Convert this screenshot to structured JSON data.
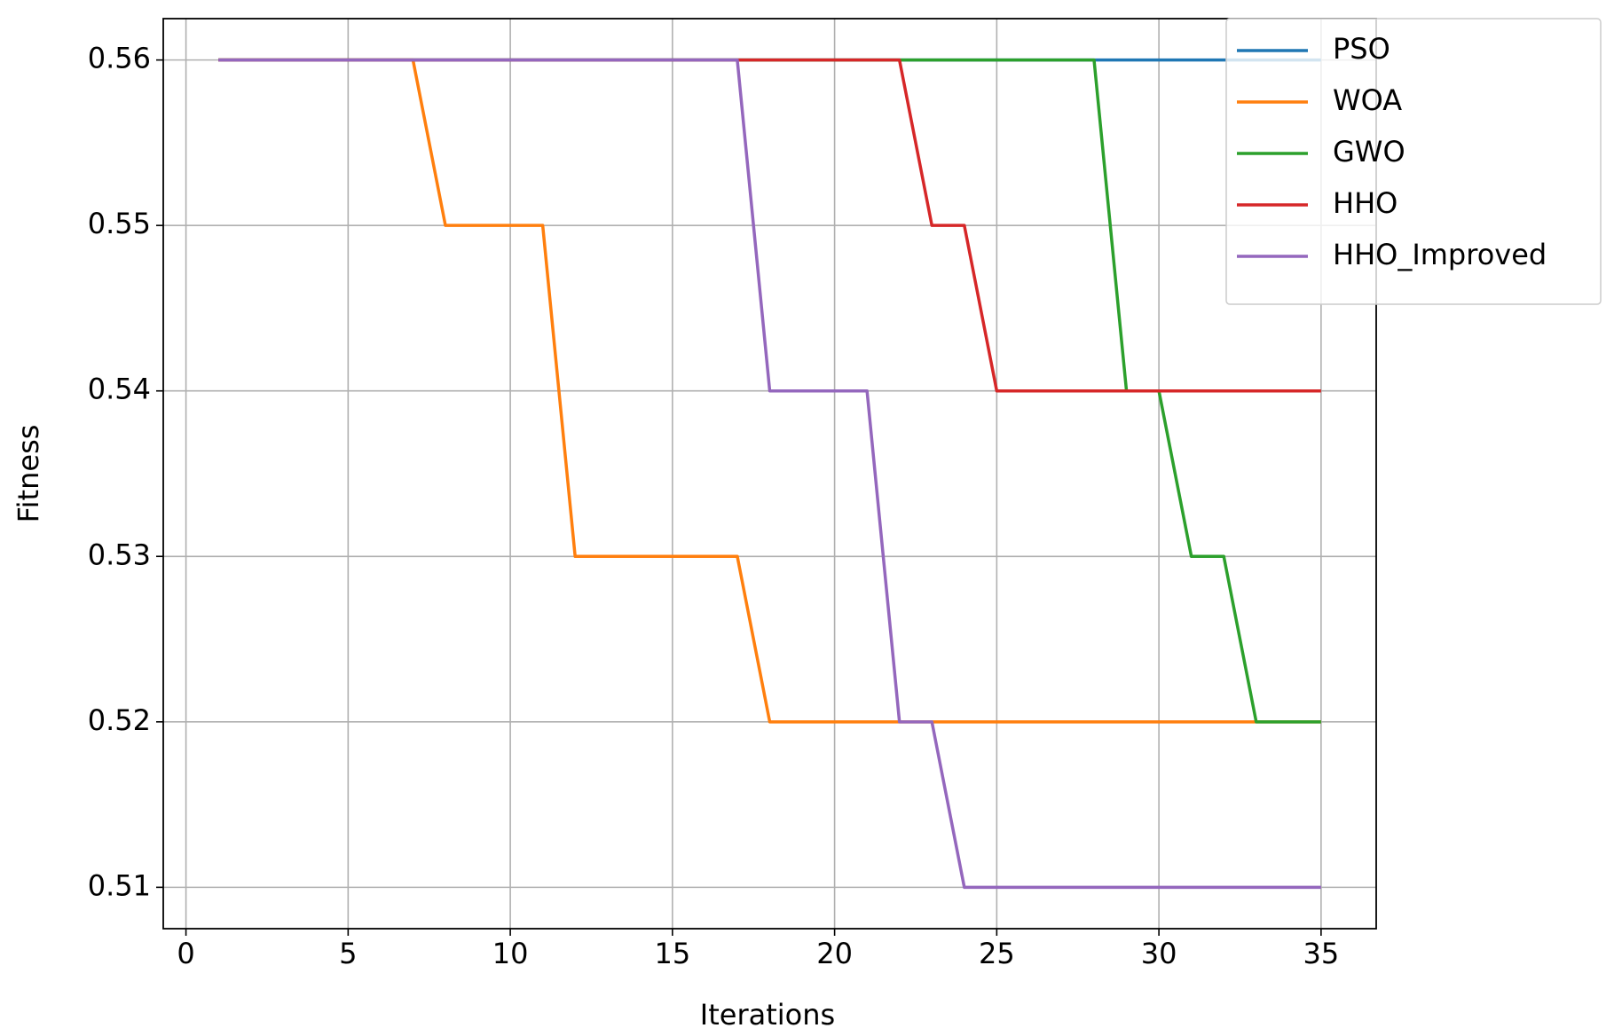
{
  "chart_data": {
    "type": "line",
    "x_label": "Iterations",
    "y_label": "Fitness",
    "x": [
      1,
      2,
      3,
      4,
      5,
      6,
      7,
      8,
      9,
      10,
      11,
      12,
      13,
      14,
      15,
      16,
      17,
      18,
      19,
      20,
      21,
      22,
      23,
      24,
      25,
      26,
      27,
      28,
      29,
      30,
      31,
      32,
      33,
      34,
      35
    ],
    "series": [
      {
        "name": "PSO",
        "color": "#1f77b4",
        "values": [
          0.56,
          0.56,
          0.56,
          0.56,
          0.56,
          0.56,
          0.56,
          0.56,
          0.56,
          0.56,
          0.56,
          0.56,
          0.56,
          0.56,
          0.56,
          0.56,
          0.56,
          0.56,
          0.56,
          0.56,
          0.56,
          0.56,
          0.56,
          0.56,
          0.56,
          0.56,
          0.56,
          0.56,
          0.56,
          0.56,
          0.56,
          0.56,
          0.56,
          0.56,
          0.56
        ]
      },
      {
        "name": "WOA",
        "color": "#ff7f0e",
        "values": [
          0.56,
          0.56,
          0.56,
          0.56,
          0.56,
          0.56,
          0.56,
          0.55,
          0.55,
          0.55,
          0.55,
          0.53,
          0.53,
          0.53,
          0.53,
          0.53,
          0.53,
          0.52,
          0.52,
          0.52,
          0.52,
          0.52,
          0.52,
          0.52,
          0.52,
          0.52,
          0.52,
          0.52,
          0.52,
          0.52,
          0.52,
          0.52,
          0.52,
          0.52,
          0.52
        ]
      },
      {
        "name": "GWO",
        "color": "#2ca02c",
        "values": [
          0.56,
          0.56,
          0.56,
          0.56,
          0.56,
          0.56,
          0.56,
          0.56,
          0.56,
          0.56,
          0.56,
          0.56,
          0.56,
          0.56,
          0.56,
          0.56,
          0.56,
          0.56,
          0.56,
          0.56,
          0.56,
          0.56,
          0.56,
          0.56,
          0.56,
          0.56,
          0.56,
          0.56,
          0.54,
          0.54,
          0.53,
          0.53,
          0.52,
          0.52,
          0.52
        ]
      },
      {
        "name": "HHO",
        "color": "#d62728",
        "values": [
          0.56,
          0.56,
          0.56,
          0.56,
          0.56,
          0.56,
          0.56,
          0.56,
          0.56,
          0.56,
          0.56,
          0.56,
          0.56,
          0.56,
          0.56,
          0.56,
          0.56,
          0.56,
          0.56,
          0.56,
          0.56,
          0.56,
          0.55,
          0.55,
          0.54,
          0.54,
          0.54,
          0.54,
          0.54,
          0.54,
          0.54,
          0.54,
          0.54,
          0.54,
          0.54
        ]
      },
      {
        "name": "HHO_Improved",
        "color": "#9467bd",
        "values": [
          0.56,
          0.56,
          0.56,
          0.56,
          0.56,
          0.56,
          0.56,
          0.56,
          0.56,
          0.56,
          0.56,
          0.56,
          0.56,
          0.56,
          0.56,
          0.56,
          0.56,
          0.54,
          0.54,
          0.54,
          0.54,
          0.52,
          0.52,
          0.51,
          0.51,
          0.51,
          0.51,
          0.51,
          0.51,
          0.51,
          0.51,
          0.51,
          0.51,
          0.51,
          0.51
        ]
      }
    ],
    "xlim": [
      -0.7,
      36.7
    ],
    "xticks": [
      0,
      5,
      10,
      15,
      20,
      25,
      30,
      35
    ],
    "ylim": [
      0.5075,
      0.5625
    ],
    "yticks": [
      0.51,
      0.52,
      0.53,
      0.54,
      0.55,
      0.56
    ],
    "grid": true,
    "legend": "upper right"
  }
}
